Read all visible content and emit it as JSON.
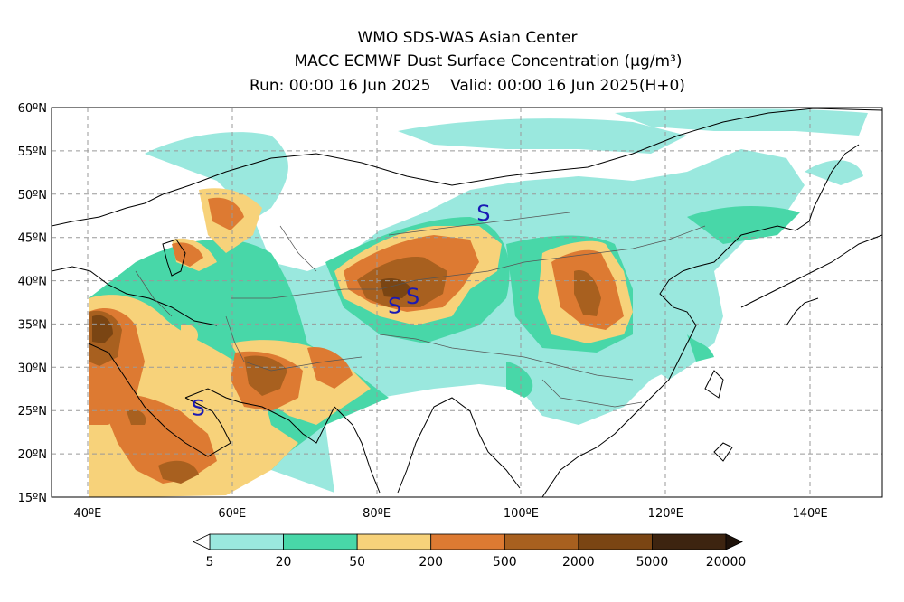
{
  "title": {
    "line1": "WMO SDS-WAS Asian Center",
    "line2": "MACC ECMWF Dust Surface Concentration (μg/m³)",
    "run": "Run: 00:00 16 Jun 2025",
    "valid": "Valid: 00:00 16 Jun 2025(H+0)"
  },
  "axes": {
    "lat_labels": [
      "60ºN",
      "55ºN",
      "50ºN",
      "45ºN",
      "40ºN",
      "35ºN",
      "30ºN",
      "25ºN",
      "20ºN",
      "15ºN"
    ],
    "lon_labels": [
      "40ºE",
      "60ºE",
      "80ºE",
      "100ºE",
      "120ºE",
      "140ºE"
    ],
    "lat_range": [
      15,
      60
    ],
    "lon_range": [
      35,
      150
    ]
  },
  "colorbar": {
    "labels": [
      "5",
      "20",
      "50",
      "200",
      "500",
      "2000",
      "5000",
      "20000"
    ],
    "colors": [
      "#9ae8de",
      "#48d7a8",
      "#f7d27a",
      "#dd7a32",
      "#a8601f",
      "#7a4513",
      "#3d2410"
    ]
  },
  "markers": [
    {
      "label": "S",
      "lon": 94.8,
      "lat": 47.9
    },
    {
      "label": "S",
      "lon": 82.5,
      "lat": 37.2
    },
    {
      "label": "S",
      "lon": 85.0,
      "lat": 38.3
    },
    {
      "label": "S",
      "lon": 55.3,
      "lat": 25.4
    }
  ]
}
